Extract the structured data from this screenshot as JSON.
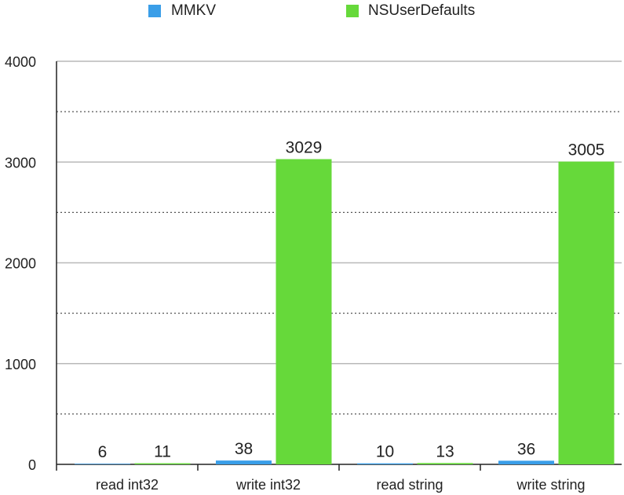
{
  "chart_data": {
    "type": "bar",
    "categories": [
      "read int32",
      "write int32",
      "read string",
      "write string"
    ],
    "series": [
      {
        "name": "MMKV",
        "values": [
          6,
          38,
          10,
          36
        ],
        "color": "#3a9ee8"
      },
      {
        "name": "NSUserDefaults",
        "values": [
          11,
          3029,
          13,
          3005
        ],
        "color": "#66d93a"
      }
    ],
    "data_labels": [
      [
        "6",
        "38",
        "10",
        "36"
      ],
      [
        "11",
        "3029",
        "13",
        "3005"
      ]
    ],
    "title": "",
    "xlabel": "",
    "ylabel": "",
    "ylim": [
      0,
      4000
    ],
    "yticks": [
      "0",
      "1000",
      "2000",
      "3000",
      "4000"
    ],
    "grid": true,
    "legend_position": "top"
  }
}
